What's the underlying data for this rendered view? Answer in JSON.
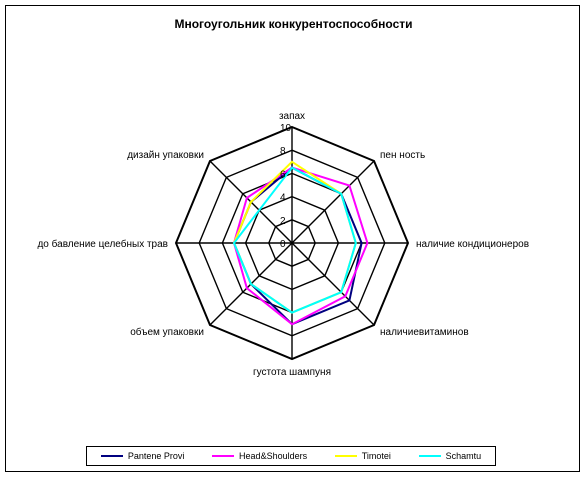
{
  "chart_data": {
    "type": "radar",
    "title": "Многоугольник  конкурентоспособности",
    "axes": [
      "запах",
      "пенность",
      "наличие кондиционеров",
      "наличие витаминов",
      "густота шампуня",
      "объем упаковки",
      "добавление целебных трав",
      "дизайн упаковки"
    ],
    "axis_labels_display": [
      "запах",
      "пен ность",
      "наличие кондиционеров",
      "наличиевитаминов",
      "густота шампуня",
      "объем упаковки",
      "до бавление целебных трав",
      "дизайн упаковки"
    ],
    "rlim": [
      0,
      10
    ],
    "ticks": [
      0,
      2,
      4,
      6,
      8,
      10
    ],
    "tick_labels": [
      "0",
      "2",
      "4",
      "6",
      "8",
      "10"
    ],
    "grid": true,
    "legend_position": "bottom",
    "series": [
      {
        "name": "Pantene Provi",
        "color": "#000080",
        "values": [
          6.5,
          6,
          6,
          7,
          7,
          5,
          5,
          5
        ]
      },
      {
        "name": "Head&Shoulders",
        "color": "#ff00ff",
        "values": [
          6.5,
          7,
          6.5,
          6.5,
          7,
          5.5,
          5,
          5.5
        ]
      },
      {
        "name": "Timotei",
        "color": "#ffff00",
        "values": [
          7,
          6,
          5.5,
          6,
          6,
          5,
          5,
          5
        ]
      },
      {
        "name": "Schamtu",
        "color": "#00ffff",
        "values": [
          6.5,
          6,
          5.5,
          6,
          6,
          5,
          5,
          4
        ]
      }
    ]
  }
}
